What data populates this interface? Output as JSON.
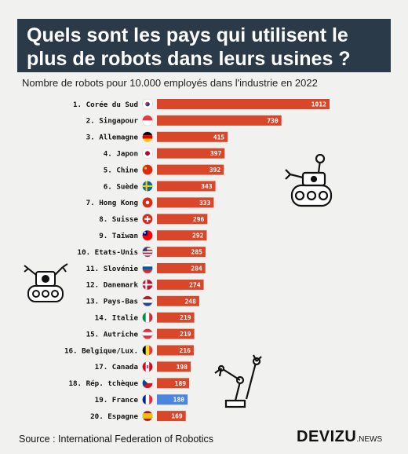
{
  "title": "Quels sont les pays qui utilisent le plus de robots dans leurs usines ?",
  "subtitle": "Nombre de robots pour 10.000 employés dans l'industrie en 2022",
  "source": "Source : International Federation of Robotics",
  "logo": {
    "main": "DEVIZU",
    "sub": ".NEWS"
  },
  "colors": {
    "bar": "#d9472b",
    "highlight": "#4a86e0",
    "title_bg": "#2b3a48"
  },
  "chart_data": {
    "type": "bar",
    "orientation": "horizontal",
    "categories": [
      "1. Corée du Sud",
      "2. Singapour",
      "3. Allemagne",
      "4. Japon",
      "5. Chine",
      "6. Suède",
      "7. Hong Kong",
      "8. Suisse",
      "9. Taïwan",
      "10. Etats-Unis",
      "11. Slovénie",
      "12. Danemark",
      "13. Pays-Bas",
      "14. Italie",
      "15. Autriche",
      "16. Belgique/Lux.",
      "17. Canada",
      "18. Rép. tchèque",
      "19. France",
      "20. Espagne"
    ],
    "values": [
      1012,
      730,
      415,
      397,
      392,
      343,
      333,
      296,
      292,
      285,
      284,
      274,
      248,
      219,
      219,
      216,
      198,
      189,
      180,
      169
    ],
    "highlight": "19. France",
    "xlim": [
      0,
      1012
    ],
    "flags": [
      "kr",
      "sg",
      "de",
      "jp",
      "cn",
      "se",
      "hk",
      "ch",
      "tw",
      "us",
      "si",
      "dk",
      "nl",
      "it",
      "at",
      "be",
      "ca",
      "cz",
      "fr",
      "es"
    ]
  }
}
